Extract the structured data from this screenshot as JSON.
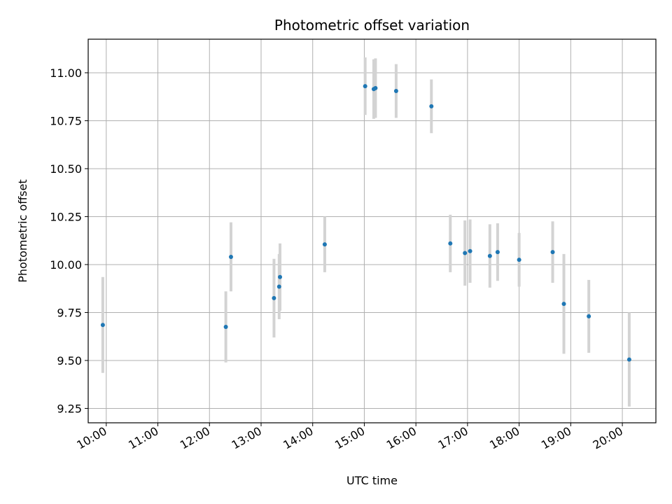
{
  "chart_data": {
    "type": "scatter",
    "title": "Photometric offset variation",
    "xlabel": "UTC time",
    "ylabel": "Photometric offset",
    "grid": true,
    "xlim": [
      "09:39",
      "20:39"
    ],
    "ylim": [
      9.175,
      11.175
    ],
    "x_ticks": [
      "10:00",
      "11:00",
      "12:00",
      "13:00",
      "14:00",
      "15:00",
      "16:00",
      "17:00",
      "18:00",
      "19:00",
      "20:00"
    ],
    "y_ticks": [
      "9.25",
      "9.50",
      "9.75",
      "10.00",
      "10.25",
      "10.50",
      "10.75",
      "11.00"
    ],
    "colors": {
      "point": "#1f77b4",
      "errorbar": "#d3d3d3",
      "grid": "#b0b0b0"
    },
    "series": [
      {
        "points": [
          {
            "x": "09:56",
            "y": 9.685,
            "err": 0.25
          },
          {
            "x": "12:19",
            "y": 9.675,
            "err": 0.185
          },
          {
            "x": "12:25",
            "y": 10.04,
            "err": 0.18
          },
          {
            "x": "13:15",
            "y": 9.825,
            "err": 0.205
          },
          {
            "x": "13:21",
            "y": 9.885,
            "err": 0.17
          },
          {
            "x": "13:22",
            "y": 9.935,
            "err": 0.175
          },
          {
            "x": "14:14",
            "y": 10.105,
            "err": 0.145
          },
          {
            "x": "15:01",
            "y": 10.93,
            "err": 0.15
          },
          {
            "x": "15:11",
            "y": 10.915,
            "err": 0.155
          },
          {
            "x": "15:13",
            "y": 10.92,
            "err": 0.155
          },
          {
            "x": "15:37",
            "y": 10.905,
            "err": 0.14
          },
          {
            "x": "16:18",
            "y": 10.825,
            "err": 0.14
          },
          {
            "x": "16:40",
            "y": 10.11,
            "err": 0.15
          },
          {
            "x": "16:57",
            "y": 10.06,
            "err": 0.17
          },
          {
            "x": "17:03",
            "y": 10.07,
            "err": 0.165
          },
          {
            "x": "17:26",
            "y": 10.045,
            "err": 0.165
          },
          {
            "x": "17:35",
            "y": 10.065,
            "err": 0.15
          },
          {
            "x": "18:00",
            "y": 10.025,
            "err": 0.14
          },
          {
            "x": "18:39",
            "y": 10.065,
            "err": 0.16
          },
          {
            "x": "18:52",
            "y": 9.795,
            "err": 0.26
          },
          {
            "x": "19:21",
            "y": 9.73,
            "err": 0.19
          },
          {
            "x": "20:08",
            "y": 9.505,
            "err": 0.245
          }
        ]
      }
    ]
  }
}
